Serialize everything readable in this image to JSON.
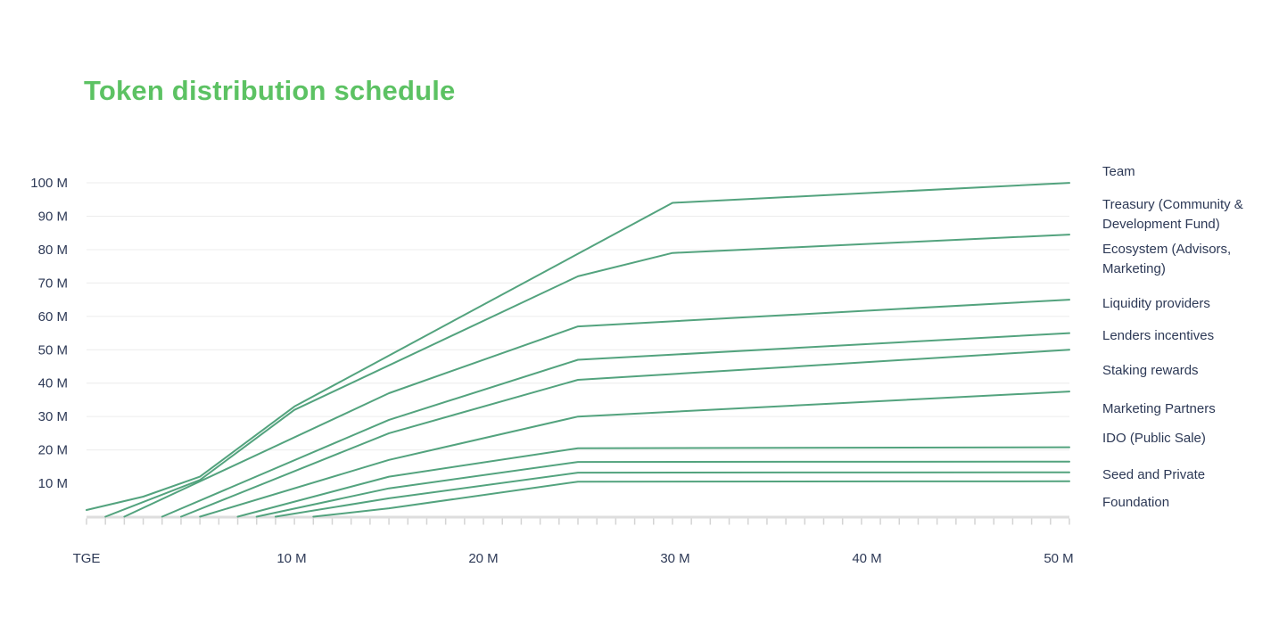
{
  "title": "Token distribution schedule",
  "chart_data": {
    "type": "line",
    "title": "Token distribution schedule",
    "xlabel": "",
    "ylabel": "",
    "x_unit": "months after TGE",
    "y_unit": "tokens (millions)",
    "x_range": [
      0,
      52
    ],
    "y_range": [
      0,
      100
    ],
    "grid": "horizontal",
    "legend_position": "right",
    "line_color": "#4a9e77",
    "x_tick_labels": [
      "TGE",
      "10 M",
      "20 M",
      "30 M",
      "40 M",
      "50 M"
    ],
    "y_tick_labels": [
      "100 M",
      "90 M",
      "80 M",
      "70 M",
      "60 M",
      "50 M",
      "40 M",
      "30 M",
      "20 M",
      "10 M"
    ],
    "y_tick_values": [
      100,
      90,
      80,
      70,
      60,
      50,
      40,
      30,
      20,
      10
    ],
    "series": [
      {
        "name": "Team",
        "points": [
          [
            0,
            2
          ],
          [
            3,
            6
          ],
          [
            6,
            12
          ],
          [
            11,
            33
          ],
          [
            31,
            94
          ],
          [
            52,
            100
          ]
        ]
      },
      {
        "name": "Treasury (Community & Development Fund)",
        "points": [
          [
            1,
            0
          ],
          [
            6,
            11
          ],
          [
            11,
            32
          ],
          [
            26,
            72
          ],
          [
            31,
            79
          ],
          [
            52,
            84.5
          ]
        ]
      },
      {
        "name": "Ecosystem (Advisors, Marketing)",
        "points": [
          [
            2,
            0
          ],
          [
            16,
            37
          ],
          [
            26,
            57
          ],
          [
            52,
            65
          ]
        ]
      },
      {
        "name": "Liquidity providers",
        "points": [
          [
            4,
            0
          ],
          [
            16,
            29
          ],
          [
            26,
            47
          ],
          [
            52,
            55
          ]
        ]
      },
      {
        "name": "Lenders incentives",
        "points": [
          [
            5,
            0
          ],
          [
            16,
            25
          ],
          [
            26,
            41
          ],
          [
            52,
            50
          ]
        ]
      },
      {
        "name": "Staking rewards",
        "points": [
          [
            6,
            0
          ],
          [
            16,
            17
          ],
          [
            26,
            30
          ],
          [
            52,
            37.5
          ]
        ]
      },
      {
        "name": "Marketing Partners",
        "points": [
          [
            8,
            0
          ],
          [
            16,
            12
          ],
          [
            26,
            20.5
          ],
          [
            52,
            20.8
          ]
        ]
      },
      {
        "name": "IDO (Public Sale)",
        "points": [
          [
            9,
            0
          ],
          [
            16,
            8.5
          ],
          [
            26,
            16.4
          ],
          [
            52,
            16.5
          ]
        ]
      },
      {
        "name": "Seed and Private",
        "points": [
          [
            10,
            0
          ],
          [
            16,
            5.5
          ],
          [
            26,
            13.2
          ],
          [
            52,
            13.3
          ]
        ]
      },
      {
        "name": "Foundation",
        "points": [
          [
            12,
            0
          ],
          [
            16,
            2.5
          ],
          [
            26,
            10.5
          ],
          [
            52,
            10.6
          ]
        ]
      }
    ]
  }
}
